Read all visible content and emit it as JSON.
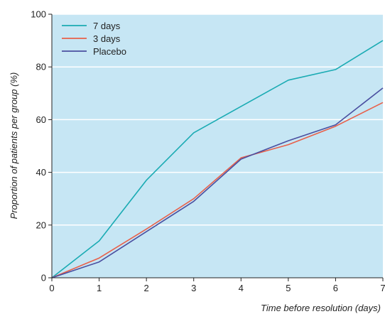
{
  "chart_data": {
    "type": "line",
    "title": "",
    "xlabel": "Time before resolution (days)",
    "ylabel": "Proportion of patients per group (%)",
    "xlim": [
      0,
      7
    ],
    "ylim": [
      0,
      100
    ],
    "xticks": [
      "0",
      "1",
      "2",
      "3",
      "4",
      "5",
      "6",
      "7"
    ],
    "yticks": [
      "0",
      "20",
      "40",
      "60",
      "80",
      "100"
    ],
    "grid": "horizontal",
    "legend_position": "top-left",
    "background_color": "#c6e6f4",
    "x": [
      0,
      1,
      2,
      3,
      4,
      5,
      6,
      7
    ],
    "series": [
      {
        "name": "7 days",
        "color": "#1aabb3",
        "values": [
          0,
          14,
          37,
          55,
          65,
          75,
          79,
          90
        ]
      },
      {
        "name": "3 days",
        "color": "#e8604a",
        "values": [
          0,
          7.5,
          18.5,
          30,
          45.5,
          50.5,
          57.5,
          66.5
        ]
      },
      {
        "name": "Placebo",
        "color": "#4a4fa0",
        "values": [
          0,
          6,
          17.5,
          29,
          45,
          52,
          58,
          72
        ]
      }
    ]
  }
}
